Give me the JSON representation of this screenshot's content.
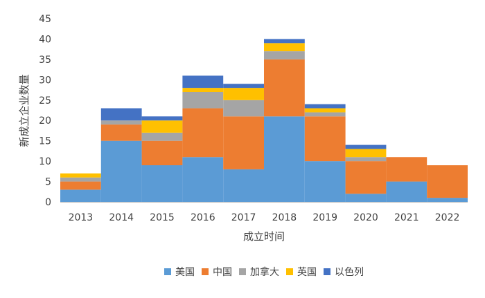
{
  "chart_data": {
    "type": "bar",
    "stacked": true,
    "xlabel": "成立时间",
    "ylabel": "新成立企业数量",
    "ylim": [
      0,
      45
    ],
    "yticks": [
      0,
      5,
      10,
      15,
      20,
      25,
      30,
      35,
      40,
      45
    ],
    "grid": false,
    "legend_position": "bottom",
    "categories": [
      "2013",
      "2014",
      "2015",
      "2016",
      "2017",
      "2018",
      "2019",
      "2020",
      "2021",
      "2022"
    ],
    "series": [
      {
        "name": "美国",
        "color": "#5B9BD5",
        "values": [
          3,
          15,
          9,
          11,
          8,
          21,
          10,
          2,
          5,
          1
        ]
      },
      {
        "name": "中国",
        "color": "#ED7D31",
        "values": [
          2,
          4,
          6,
          12,
          13,
          14,
          11,
          8,
          6,
          8
        ]
      },
      {
        "name": "加拿大",
        "color": "#A5A5A5",
        "values": [
          1,
          1,
          2,
          4,
          4,
          2,
          1,
          1,
          0,
          0
        ]
      },
      {
        "name": "英国",
        "color": "#FFC000",
        "values": [
          1,
          0,
          3,
          1,
          3,
          2,
          1,
          2,
          0,
          0
        ]
      },
      {
        "name": "以色列",
        "color": "#4472C4",
        "values": [
          0,
          3,
          1,
          3,
          1,
          1,
          1,
          1,
          0,
          0
        ]
      }
    ]
  }
}
